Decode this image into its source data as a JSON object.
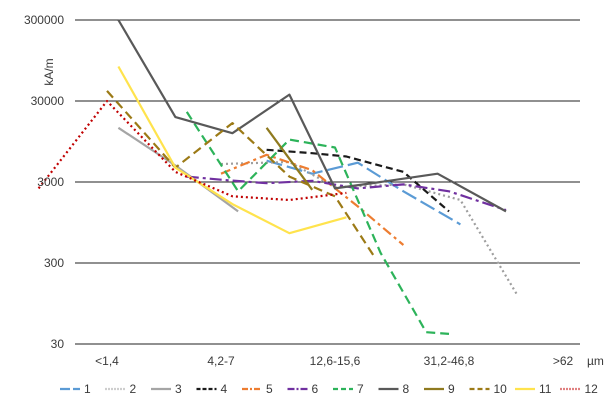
{
  "chart_data": {
    "type": "line",
    "ylabel": "kA/m",
    "xlabel": "µm",
    "y_scale": "log",
    "ylim": [
      30,
      300000
    ],
    "y_ticks": [
      30,
      300,
      3000,
      30000,
      300000
    ],
    "y_tick_labels": [
      "30",
      "300",
      "3000",
      "30000",
      "300000"
    ],
    "categories": [
      "<1,4",
      "4,2-7",
      "12,6-15,6",
      "31,2-46,8",
      ">62"
    ],
    "x_positions": [
      0,
      1,
      2,
      3,
      4
    ],
    "grid": "horizontal",
    "legend_position": "bottom",
    "series": [
      {
        "name": "1",
        "color": "#5B9BD5",
        "dash": "16,5",
        "x": [
          1.4,
          1.8,
          2.2,
          2.6,
          3.1
        ],
        "y": [
          5500,
          3800,
          5200,
          2300,
          900
        ]
      },
      {
        "name": "2",
        "color": "#9E9E9E",
        "dash": "2,3",
        "x": [
          1.0,
          1.6,
          2.0,
          2.6,
          3.1,
          3.6
        ],
        "y": [
          5000,
          5300,
          2600,
          2800,
          1800,
          120
        ]
      },
      {
        "name": "3",
        "color": "#A5A5A5",
        "dash": "",
        "x": [
          0.1,
          0.6,
          1.15
        ],
        "y": [
          14000,
          4800,
          1300
        ]
      },
      {
        "name": "4",
        "color": "#1A1A1A",
        "dash": "7,4",
        "x": [
          1.4,
          1.8,
          2.1,
          2.6,
          3.0
        ],
        "y": [
          7500,
          6800,
          6200,
          4000,
          1300
        ]
      },
      {
        "name": "5",
        "color": "#ED7D31",
        "dash": "10,4,3,4",
        "x": [
          1.0,
          1.4,
          1.8,
          2.2,
          2.6
        ],
        "y": [
          3800,
          6500,
          4200,
          1500,
          500
        ]
      },
      {
        "name": "6",
        "color": "#7030A0",
        "dash": "12,4,3,4",
        "x": [
          0.7,
          1.0,
          1.4,
          1.8,
          2.2,
          2.6,
          3.0,
          3.5
        ],
        "y": [
          3500,
          3200,
          2900,
          3100,
          2500,
          2800,
          2300,
          1350
        ]
      },
      {
        "name": "7",
        "color": "#2DB35A",
        "dash": "9,5",
        "x": [
          0.7,
          1.15,
          1.6,
          2.0,
          2.4,
          2.8,
          3.0
        ],
        "y": [
          22000,
          2300,
          10000,
          8000,
          400,
          42,
          40
        ]
      },
      {
        "name": "8",
        "color": "#595959",
        "dash": "",
        "x": [
          0.1,
          0.6,
          1.1,
          1.6,
          2.0,
          2.4,
          2.9,
          3.5
        ],
        "y": [
          300000,
          19000,
          12000,
          36000,
          2500,
          3000,
          3800,
          1300
        ]
      },
      {
        "name": "9",
        "color": "#8F7A1F",
        "dash": "",
        "x": [
          1.4,
          1.8
        ],
        "y": [
          14000,
          2400
        ]
      },
      {
        "name": "10",
        "color": "#9C7A16",
        "dash": "9,5",
        "x": [
          0.0,
          0.6,
          1.1,
          1.6,
          2.0,
          2.35
        ],
        "y": [
          40000,
          4500,
          16000,
          3500,
          2000,
          350
        ]
      },
      {
        "name": "11",
        "color": "#FFE34D",
        "dash": "",
        "x": [
          0.1,
          0.6,
          1.1,
          1.6,
          2.1
        ],
        "y": [
          80000,
          4500,
          1600,
          700,
          1100
        ]
      },
      {
        "name": "12",
        "color": "#C00000",
        "dash": "2,3",
        "x": [
          -0.6,
          0.0,
          0.6,
          1.1,
          1.6,
          2.1
        ],
        "y": [
          2500,
          30000,
          4000,
          2000,
          1800,
          2200
        ]
      }
    ]
  }
}
